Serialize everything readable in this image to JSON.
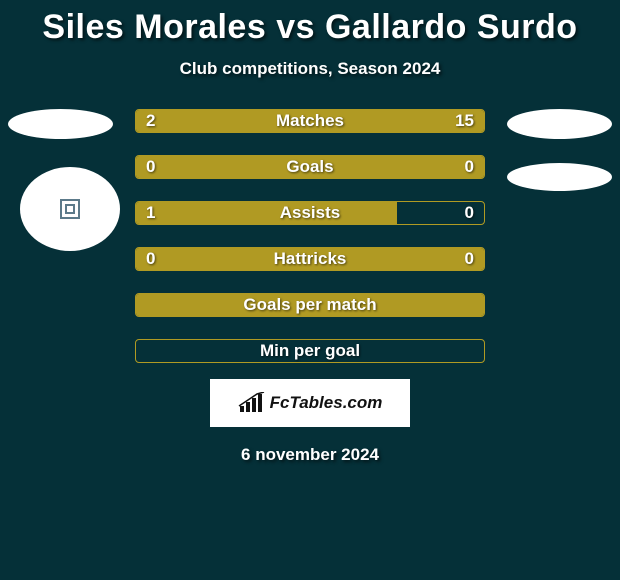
{
  "title": "Siles Morales vs Gallardo Surdo",
  "subtitle": "Club competitions, Season 2024",
  "date": "6 november 2024",
  "brand": "FcTables.com",
  "colors": {
    "background": "#053038",
    "bar_fill": "#b09a23",
    "bar_border": "#b09a23",
    "text": "#ffffff",
    "avatar_bg": "#ffffff"
  },
  "bars": [
    {
      "label": "Matches",
      "left_val": "2",
      "right_val": "15",
      "left_pct": 12,
      "right_pct": 88,
      "show_vals": true
    },
    {
      "label": "Goals",
      "left_val": "0",
      "right_val": "0",
      "left_pct": 50,
      "right_pct": 50,
      "show_vals": true
    },
    {
      "label": "Assists",
      "left_val": "1",
      "right_val": "0",
      "left_pct": 75,
      "right_pct": 0,
      "show_vals": true
    },
    {
      "label": "Hattricks",
      "left_val": "0",
      "right_val": "0",
      "left_pct": 50,
      "right_pct": 50,
      "show_vals": true
    },
    {
      "label": "Goals per match",
      "left_val": "",
      "right_val": "",
      "left_pct": 100,
      "right_pct": 0,
      "show_vals": false
    },
    {
      "label": "Min per goal",
      "left_val": "",
      "right_val": "",
      "left_pct": 0,
      "right_pct": 0,
      "show_vals": false
    }
  ]
}
